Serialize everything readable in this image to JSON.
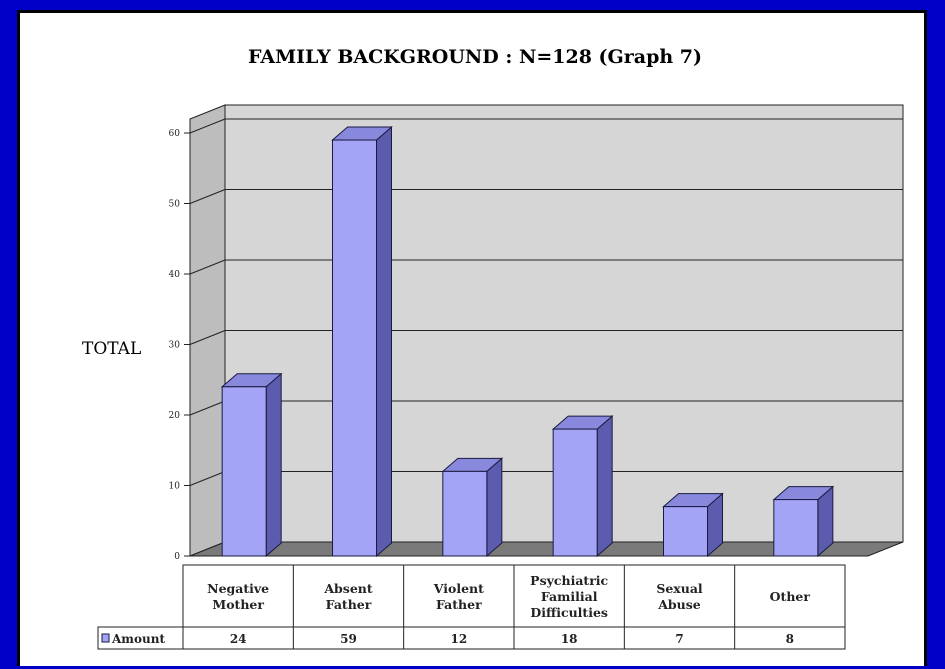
{
  "chart_data": {
    "type": "bar",
    "title": "FAMILY BACKGROUND : N=128 (Graph 7)",
    "ylabel": "TOTAL",
    "xlabel": "",
    "ylim": [
      0,
      60
    ],
    "yticks": [
      0,
      10,
      20,
      30,
      40,
      50,
      60
    ],
    "grid": true,
    "categories": [
      [
        "Negative",
        "Mother"
      ],
      [
        "Absent",
        "Father"
      ],
      [
        "Violent",
        "Father"
      ],
      [
        "Psychiatric",
        "Familial",
        "Difficulties"
      ],
      [
        "Sexual",
        "Abuse"
      ],
      [
        "Other"
      ]
    ],
    "series": [
      {
        "name": "Amount",
        "values": [
          24,
          59,
          12,
          18,
          7,
          8
        ]
      }
    ],
    "legend": "data-table-left",
    "colors": {
      "bar_front": "#a4a4f6",
      "bar_side": "#5c5cae",
      "bar_top": "#8888dc",
      "wall": "#d6d6d6",
      "floor": "#7a7a7a",
      "background": "#0000c8"
    }
  }
}
